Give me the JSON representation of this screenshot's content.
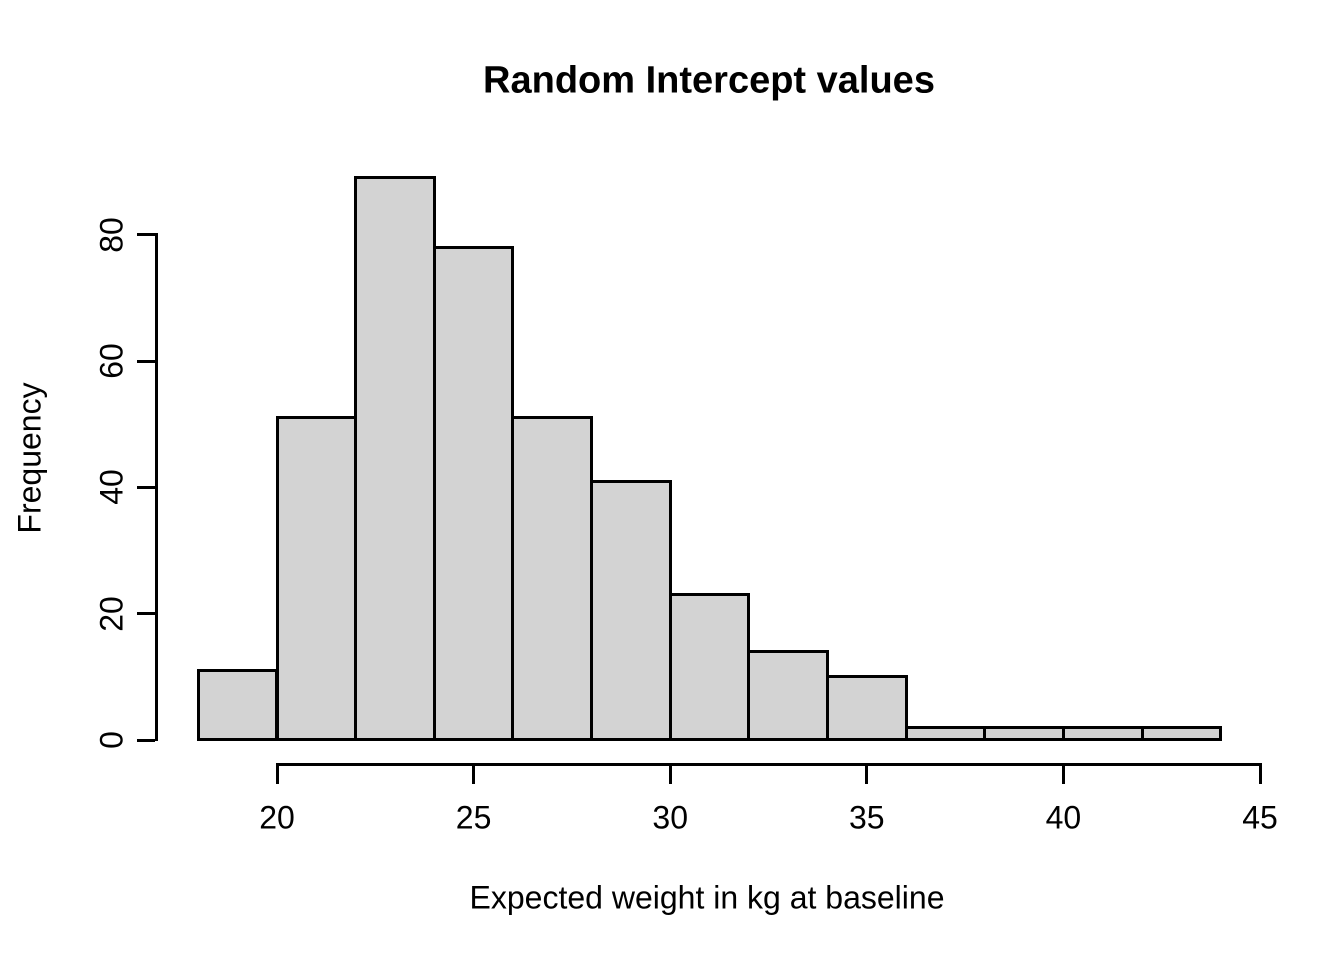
{
  "figure": {
    "background": "#ffffff",
    "text_color": "#000000"
  },
  "chart_data": {
    "type": "bar",
    "subtype": "histogram",
    "title": "Random Intercept values",
    "xlabel": "Expected weight in kg at baseline",
    "ylabel": "Frequency",
    "bin_breaks": [
      18,
      20,
      22,
      24,
      26,
      28,
      30,
      32,
      34,
      36,
      38,
      40,
      42,
      44
    ],
    "counts": [
      11,
      51,
      89,
      78,
      51,
      41,
      23,
      14,
      10,
      2,
      2,
      2,
      2
    ],
    "x_ticks": [
      20,
      25,
      30,
      35,
      40,
      45
    ],
    "y_ticks": [
      0,
      20,
      40,
      60,
      80
    ],
    "xlim": [
      18,
      44
    ],
    "ylim": [
      0,
      89
    ],
    "grid": false,
    "legend": false,
    "bar_fill": "#d3d3d3",
    "bar_border": "#000000",
    "axis_color": "#000000"
  }
}
